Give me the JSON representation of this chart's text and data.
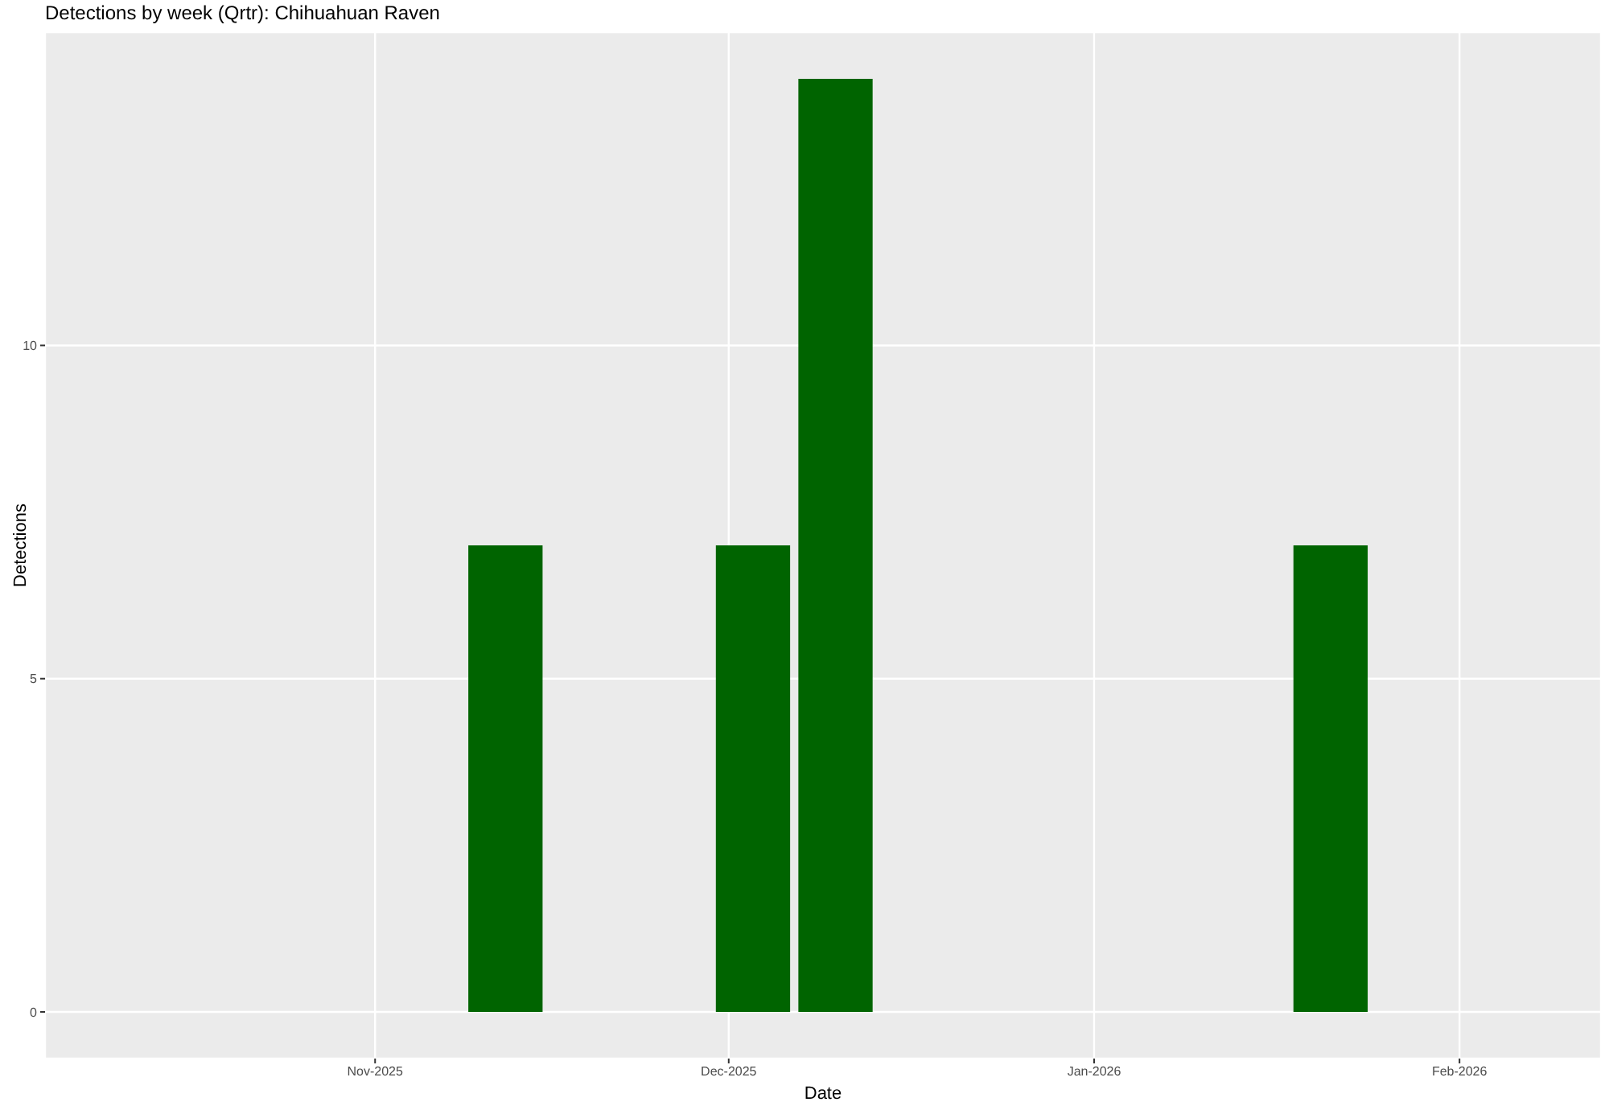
{
  "chart_data": {
    "type": "bar",
    "title": "Detections by week (Qrtr): Chihuahuan Raven",
    "xlabel": "Date",
    "ylabel": "Detections",
    "x": [
      "2025-11-12",
      "2025-12-03",
      "2025-12-10",
      "2026-01-21"
    ],
    "values": [
      7,
      7,
      14,
      7
    ],
    "color": "#006400",
    "xlim": [
      "2025-10-04",
      "2026-02-13"
    ],
    "xticks": [
      {
        "value": "2025-11-01",
        "label": "Nov-2025"
      },
      {
        "value": "2025-12-01",
        "label": "Dec-2025"
      },
      {
        "value": "2026-01-01",
        "label": "Jan-2026"
      },
      {
        "value": "2026-02-01",
        "label": "Feb-2026"
      }
    ],
    "ylim": [
      -0.7,
      14.7
    ],
    "yticks": [
      0,
      5,
      10
    ],
    "grid": true
  }
}
